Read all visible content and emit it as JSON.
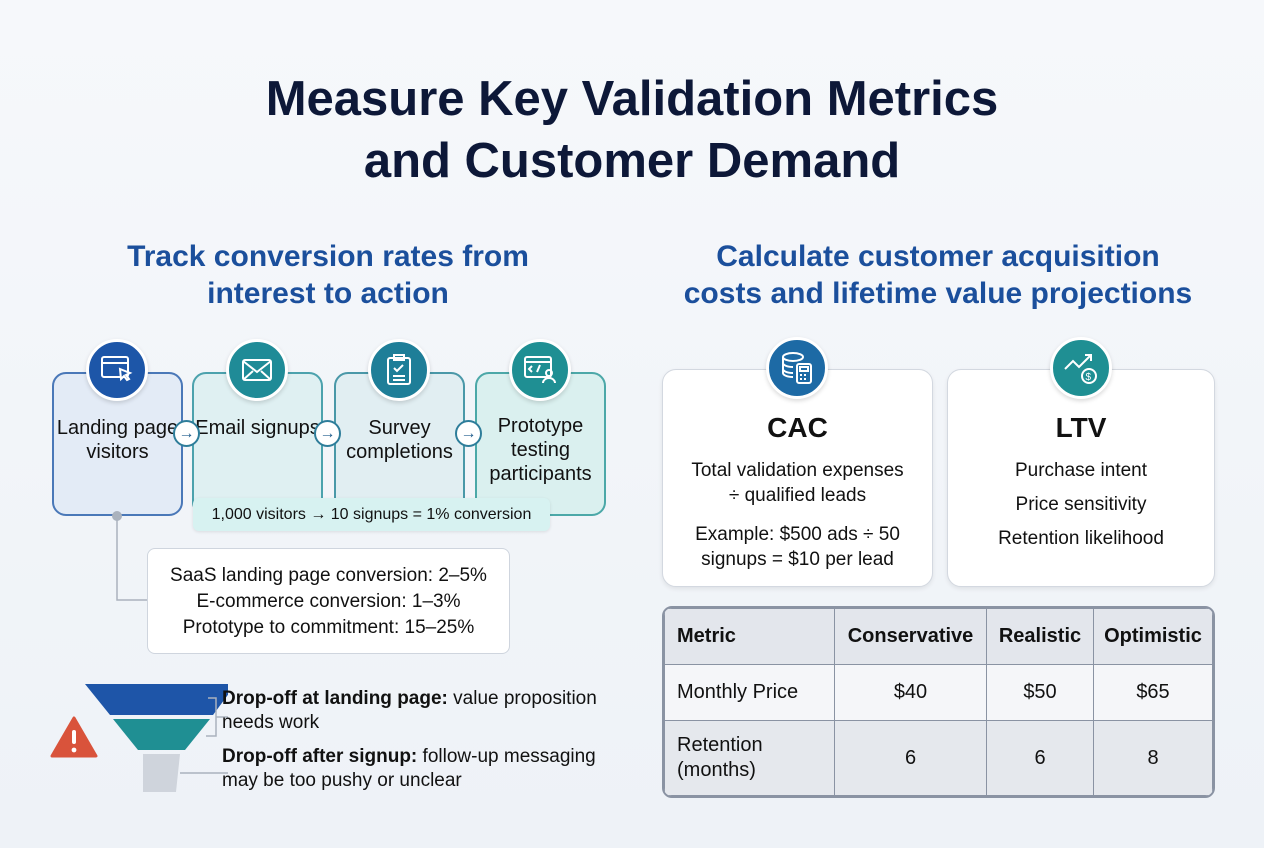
{
  "title": {
    "line1": "Measure Key Validation Metrics",
    "line2": "and Customer Demand"
  },
  "left": {
    "subtitle1": "Track conversion rates from",
    "subtitle2": "interest to action",
    "steps": [
      {
        "label": "Landing page visitors",
        "icon": "browser-cursor-icon"
      },
      {
        "label": "Email signups",
        "icon": "envelope-icon"
      },
      {
        "label": "Survey completions",
        "icon": "clipboard-check-icon"
      },
      {
        "label": "Prototype testing participants",
        "icon": "code-user-icon"
      }
    ],
    "conversion": "1,000 visitors → 10 signups = 1% conversion",
    "benchmarks": [
      "SaaS landing page conversion: 2–5%",
      "E-commerce conversion: 1–3%",
      "Prototype to commitment: 15–25%"
    ],
    "dropoffs": [
      {
        "bold": "Drop-off at landing page:",
        "text": " value proposition needs work"
      },
      {
        "bold": "Drop-off after signup:",
        "text": " follow-up messaging may be too pushy or unclear"
      }
    ]
  },
  "right": {
    "subtitle1": "Calculate customer acquisition",
    "subtitle2": "costs and lifetime value projections",
    "cac": {
      "title": "CAC",
      "line1": "Total validation expenses",
      "line2": "÷ qualified leads",
      "ex1": "Example: $500 ads ÷ 50",
      "ex2": "signups = $10 per lead",
      "icon": "coins-calculator-icon"
    },
    "ltv": {
      "title": "LTV",
      "items": [
        "Purchase intent",
        "Price sensitivity",
        "Retention likelihood"
      ],
      "icon": "trend-dollar-icon"
    },
    "table": {
      "headers": [
        "Metric",
        "Conservative",
        "Realistic",
        "Optimistic"
      ],
      "rows": [
        [
          "Monthly Price",
          "$40",
          "$50",
          "$65"
        ],
        [
          "Retention (months)",
          "6",
          "6",
          "8"
        ]
      ]
    }
  },
  "colors": {
    "navy": "#0d1838",
    "blue": "#1b4f9c",
    "teal": "#1f8f93",
    "warning": "#d9533b"
  }
}
